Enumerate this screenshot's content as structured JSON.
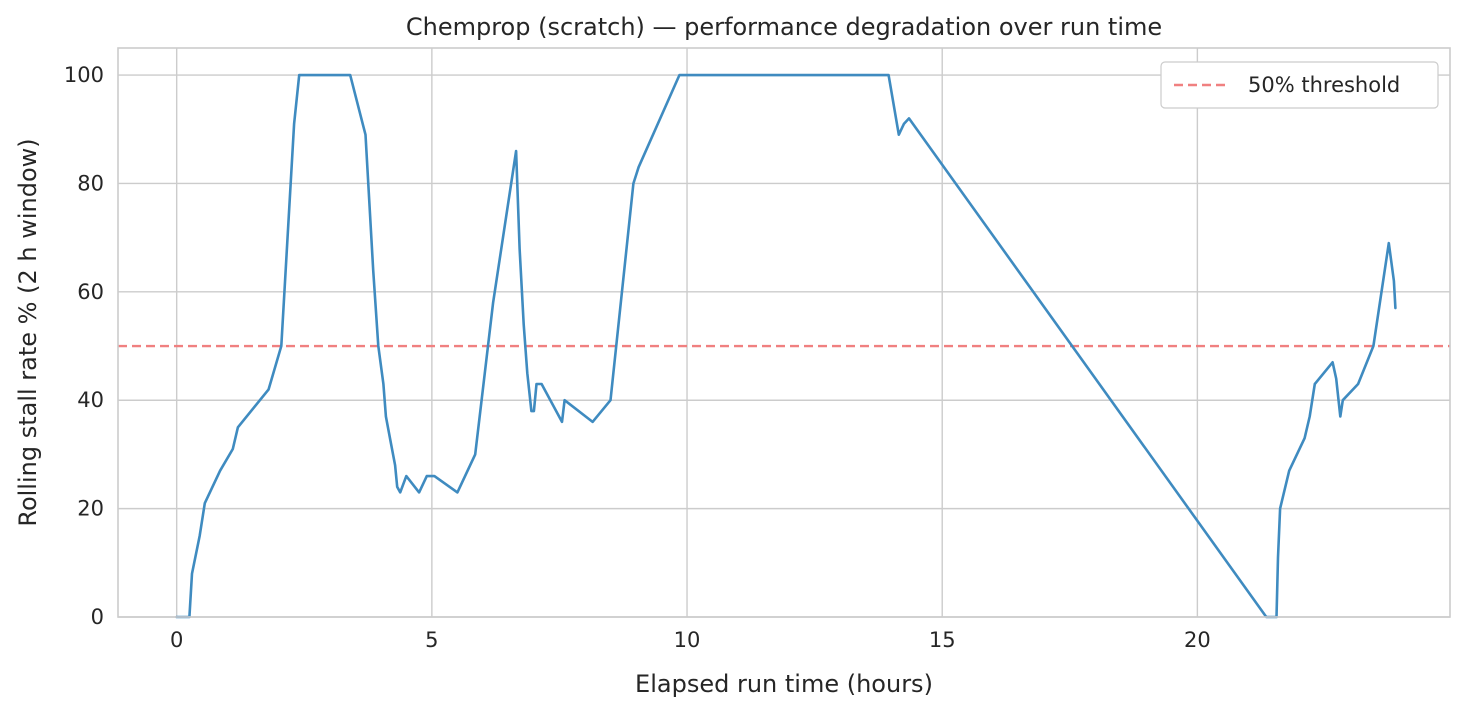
{
  "chart_data": {
    "type": "line",
    "title": "Chemprop (scratch) — performance degradation over run time",
    "xlabel": "Elapsed run time (hours)",
    "ylabel": "Rolling stall rate % (2 h window)",
    "xlim": [
      -1.15,
      24.95
    ],
    "ylim": [
      0,
      105
    ],
    "xticks": [
      0,
      5,
      10,
      15,
      20
    ],
    "yticks": [
      0,
      20,
      40,
      60,
      80,
      100
    ],
    "grid": true,
    "legend_position": "top-right",
    "colors": {
      "line": "#3f8bc0",
      "threshold": "#f08080",
      "grid": "#cccccc",
      "axes": "#cccccc"
    },
    "threshold": {
      "name": "50% threshold",
      "value": 50
    },
    "series": [
      {
        "x": [
          0.0,
          0.25,
          0.3,
          0.45,
          0.55,
          0.85,
          1.1,
          1.2,
          1.8,
          2.05,
          2.3,
          2.4,
          2.6,
          3.0,
          3.4,
          3.7,
          3.85,
          3.95,
          4.05,
          4.1,
          4.2,
          4.28,
          4.32,
          4.38,
          4.5,
          4.75,
          4.9,
          5.05,
          5.5,
          5.85,
          6.2,
          6.65,
          6.72,
          6.8,
          6.87,
          6.95,
          7.0,
          7.05,
          7.15,
          7.55,
          7.6,
          8.15,
          8.5,
          8.95,
          9.05,
          9.85,
          10.0,
          13.95,
          14.15,
          14.25,
          14.35,
          21.35,
          21.5,
          21.55,
          21.58,
          21.62,
          21.8,
          22.1,
          22.2,
          22.3,
          22.65,
          22.72,
          22.8,
          22.85,
          23.15,
          23.45,
          23.75,
          23.85,
          23.88
        ],
        "values": [
          0.0,
          0.0,
          8.0,
          15.0,
          21.0,
          27.0,
          31.0,
          35.0,
          42.0,
          50.0,
          91.0,
          100.0,
          100.0,
          100.0,
          100.0,
          89.0,
          64.0,
          50.0,
          43.0,
          37.0,
          32.0,
          28.0,
          24.0,
          23.0,
          26.0,
          23.0,
          26.0,
          26.0,
          23.0,
          30.0,
          58.0,
          86.0,
          68.0,
          54.0,
          45.0,
          38.0,
          38.0,
          43.0,
          43.0,
          36.0,
          40.0,
          36.0,
          40.0,
          80.0,
          83.0,
          100.0,
          100.0,
          100.0,
          89.0,
          91.0,
          92.0,
          0.0,
          0.0,
          0.0,
          11.0,
          20.0,
          27.0,
          33.0,
          37.0,
          43.0,
          47.0,
          44.0,
          37.0,
          40.0,
          43.0,
          50.0,
          69.0,
          62.0,
          57.0
        ]
      }
    ]
  }
}
